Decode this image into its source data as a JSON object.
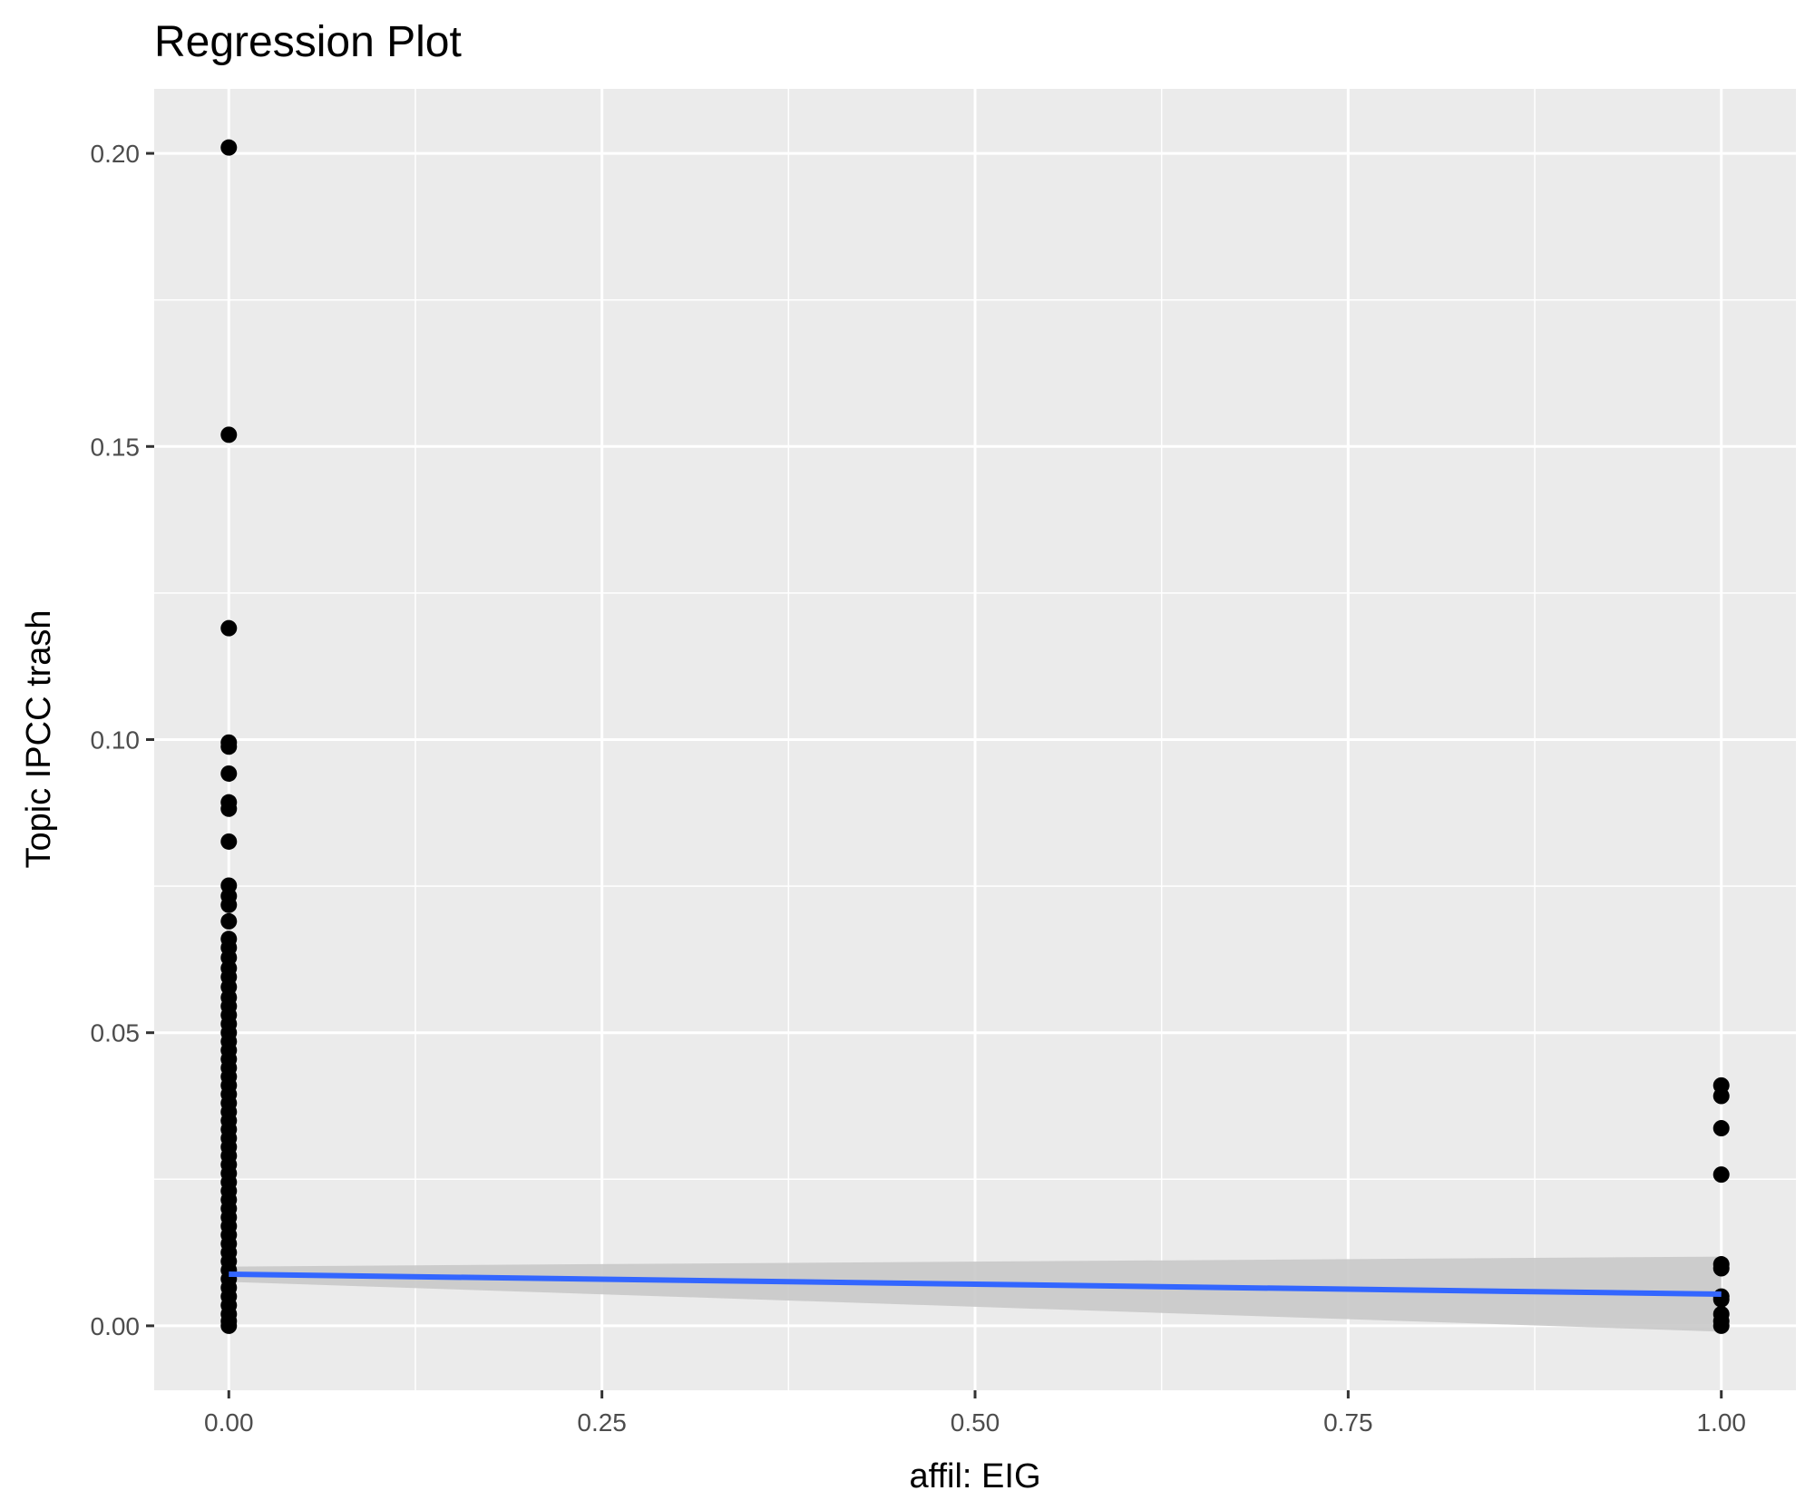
{
  "chart_data": {
    "type": "scatter",
    "title": "Regression Plot",
    "xlabel": "affil: EIG",
    "ylabel": "Topic IPCC trash",
    "xlim": [
      -0.05,
      1.05
    ],
    "ylim": [
      -0.011,
      0.211
    ],
    "x_ticks": [
      0.0,
      0.25,
      0.5,
      0.75,
      1.0
    ],
    "x_tick_labels": [
      "0.00",
      "0.25",
      "0.50",
      "0.75",
      "1.00"
    ],
    "y_ticks": [
      0.0,
      0.05,
      0.1,
      0.15,
      0.2
    ],
    "y_tick_labels": [
      "0.00",
      "0.05",
      "0.10",
      "0.15",
      "0.20"
    ],
    "grid": true,
    "points": [
      {
        "x": 0,
        "y": 0.201
      },
      {
        "x": 0,
        "y": 0.152
      },
      {
        "x": 0,
        "y": 0.119
      },
      {
        "x": 0,
        "y": 0.0995
      },
      {
        "x": 0,
        "y": 0.0988
      },
      {
        "x": 0,
        "y": 0.0942
      },
      {
        "x": 0,
        "y": 0.0893
      },
      {
        "x": 0,
        "y": 0.0882
      },
      {
        "x": 0,
        "y": 0.0826
      },
      {
        "x": 0,
        "y": 0.0751
      },
      {
        "x": 0,
        "y": 0.0733
      },
      {
        "x": 0,
        "y": 0.0718
      },
      {
        "x": 0,
        "y": 0.069
      },
      {
        "x": 0,
        "y": 0.066
      },
      {
        "x": 0,
        "y": 0.0645
      },
      {
        "x": 0,
        "y": 0.0628
      },
      {
        "x": 0,
        "y": 0.061
      },
      {
        "x": 0,
        "y": 0.0595
      },
      {
        "x": 0,
        "y": 0.0578
      },
      {
        "x": 0,
        "y": 0.056
      },
      {
        "x": 0,
        "y": 0.0545
      },
      {
        "x": 0,
        "y": 0.053
      },
      {
        "x": 0,
        "y": 0.0515
      },
      {
        "x": 0,
        "y": 0.05
      },
      {
        "x": 0,
        "y": 0.0485
      },
      {
        "x": 0,
        "y": 0.047
      },
      {
        "x": 0,
        "y": 0.0455
      },
      {
        "x": 0,
        "y": 0.044
      },
      {
        "x": 0,
        "y": 0.0425
      },
      {
        "x": 0,
        "y": 0.041
      },
      {
        "x": 0,
        "y": 0.0395
      },
      {
        "x": 0,
        "y": 0.038
      },
      {
        "x": 0,
        "y": 0.0365
      },
      {
        "x": 0,
        "y": 0.035
      },
      {
        "x": 0,
        "y": 0.0335
      },
      {
        "x": 0,
        "y": 0.032
      },
      {
        "x": 0,
        "y": 0.0305
      },
      {
        "x": 0,
        "y": 0.029
      },
      {
        "x": 0,
        "y": 0.0275
      },
      {
        "x": 0,
        "y": 0.026
      },
      {
        "x": 0,
        "y": 0.0245
      },
      {
        "x": 0,
        "y": 0.023
      },
      {
        "x": 0,
        "y": 0.0215
      },
      {
        "x": 0,
        "y": 0.02
      },
      {
        "x": 0,
        "y": 0.0185
      },
      {
        "x": 0,
        "y": 0.017
      },
      {
        "x": 0,
        "y": 0.0155
      },
      {
        "x": 0,
        "y": 0.014
      },
      {
        "x": 0,
        "y": 0.0125
      },
      {
        "x": 0,
        "y": 0.011
      },
      {
        "x": 0,
        "y": 0.0095
      },
      {
        "x": 0,
        "y": 0.008
      },
      {
        "x": 0,
        "y": 0.0065
      },
      {
        "x": 0,
        "y": 0.005
      },
      {
        "x": 0,
        "y": 0.0035
      },
      {
        "x": 0,
        "y": 0.002
      },
      {
        "x": 0,
        "y": 0.0008
      },
      {
        "x": 0,
        "y": 0.0
      },
      {
        "x": 1,
        "y": 0.041
      },
      {
        "x": 1,
        "y": 0.0392
      },
      {
        "x": 1,
        "y": 0.0337
      },
      {
        "x": 1,
        "y": 0.0258
      },
      {
        "x": 1,
        "y": 0.0105
      },
      {
        "x": 1,
        "y": 0.0098
      },
      {
        "x": 1,
        "y": 0.005
      },
      {
        "x": 1,
        "y": 0.0045
      },
      {
        "x": 1,
        "y": 0.002
      },
      {
        "x": 1,
        "y": 0.0008
      },
      {
        "x": 1,
        "y": 0.0
      }
    ],
    "regression": {
      "x": [
        0,
        1
      ],
      "y": [
        0.0088,
        0.0054
      ],
      "ci_lower": [
        0.0075,
        -0.001
      ],
      "ci_upper": [
        0.0101,
        0.0118
      ]
    },
    "colors": {
      "panel": "#ebebeb",
      "grid": "#ffffff",
      "points": "#000000",
      "line": "#3366ff",
      "ribbon": "#c9c9c9"
    }
  }
}
